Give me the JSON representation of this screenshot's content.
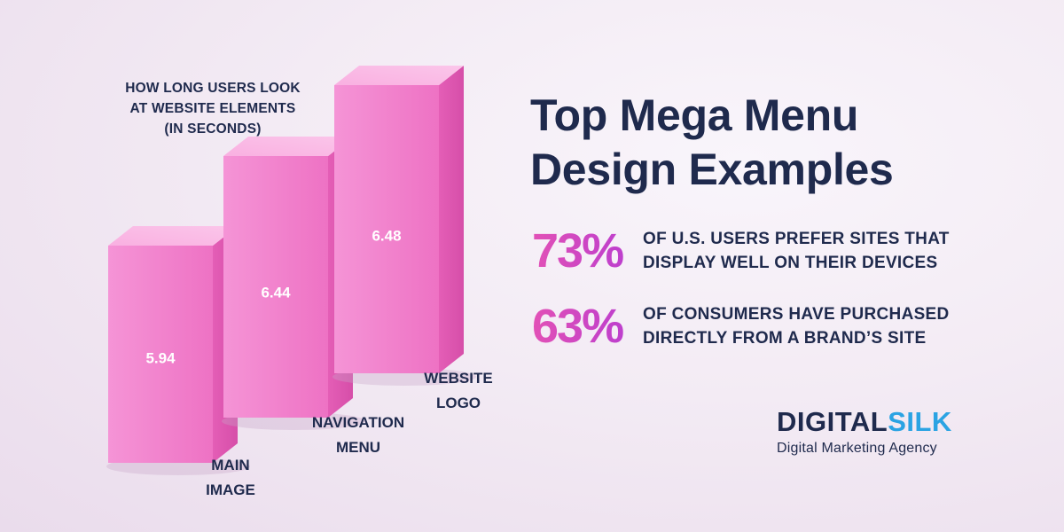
{
  "chart_data": {
    "type": "bar",
    "title_lines": [
      "HOW LONG USERS LOOK",
      "AT WEBSITE ELEMENTS",
      "(IN SECONDS)"
    ],
    "categories": [
      [
        "MAIN",
        "IMAGE"
      ],
      [
        "NAVIGATION",
        "MENU"
      ],
      [
        "WEBSITE",
        "LOGO"
      ]
    ],
    "values": [
      5.94,
      6.44,
      6.48
    ],
    "value_labels": [
      "5.94",
      "6.44",
      "6.48"
    ],
    "bar_color": "#f27fca"
  },
  "headline": {
    "line1": "Top Mega Menu",
    "line2": "Design Examples"
  },
  "stats": [
    {
      "value": "73%",
      "line1": "OF U.S. USERS PREFER SITES THAT",
      "line2": "DISPLAY WELL ON THEIR DEVICES"
    },
    {
      "value": "63%",
      "line1": "OF CONSUMERS HAVE PURCHASED",
      "line2": "DIRECTLY FROM A BRAND’S SITE"
    }
  ],
  "brand": {
    "name_part1": "DIGITAL",
    "name_part2": "SILK",
    "tagline": "Digital Marketing Agency"
  },
  "colors": {
    "navy": "#1f2a4d",
    "accent_pink": "#e251b6",
    "accent_purple": "#b63bd2",
    "brand_blue": "#2ba3e3"
  }
}
